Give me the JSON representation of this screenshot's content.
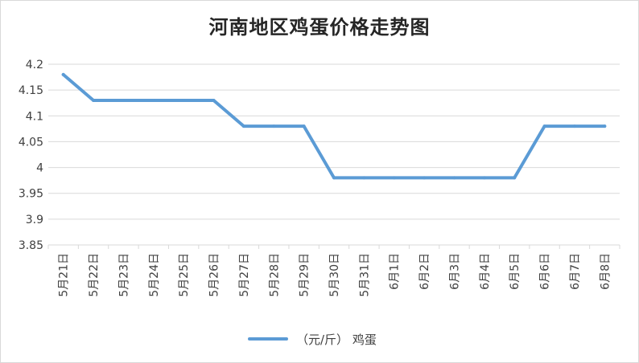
{
  "chart_data": {
    "type": "line",
    "title": "河南地区鸡蛋价格走势图",
    "categories": [
      "5月21日",
      "5月22日",
      "5月23日",
      "5月24日",
      "5月25日",
      "5月26日",
      "5月27日",
      "5月28日",
      "5月29日",
      "5月30日",
      "5月31日",
      "6月1日",
      "6月2日",
      "6月3日",
      "6月4日",
      "6月5日",
      "6月6日",
      "6月7日",
      "6月8日"
    ],
    "series": [
      {
        "name": "（元/斤） 鸡蛋",
        "values": [
          4.18,
          4.13,
          4.13,
          4.13,
          4.13,
          4.13,
          4.08,
          4.08,
          4.08,
          3.98,
          3.98,
          3.98,
          3.98,
          3.98,
          3.98,
          3.98,
          4.08,
          4.08,
          4.08
        ]
      }
    ],
    "ylim": [
      3.85,
      4.2
    ],
    "yticks": [
      3.85,
      3.9,
      3.95,
      4,
      4.05,
      4.1,
      4.15,
      4.2
    ],
    "ytick_labels": [
      "3.85",
      "3.9",
      "3.95",
      "4",
      "4.05",
      "4.1",
      "4.15",
      "4.2"
    ],
    "grid": true,
    "legend_position": "bottom",
    "colors": {
      "series": "#5b9bd5",
      "grid": "#d9d9d9"
    }
  }
}
